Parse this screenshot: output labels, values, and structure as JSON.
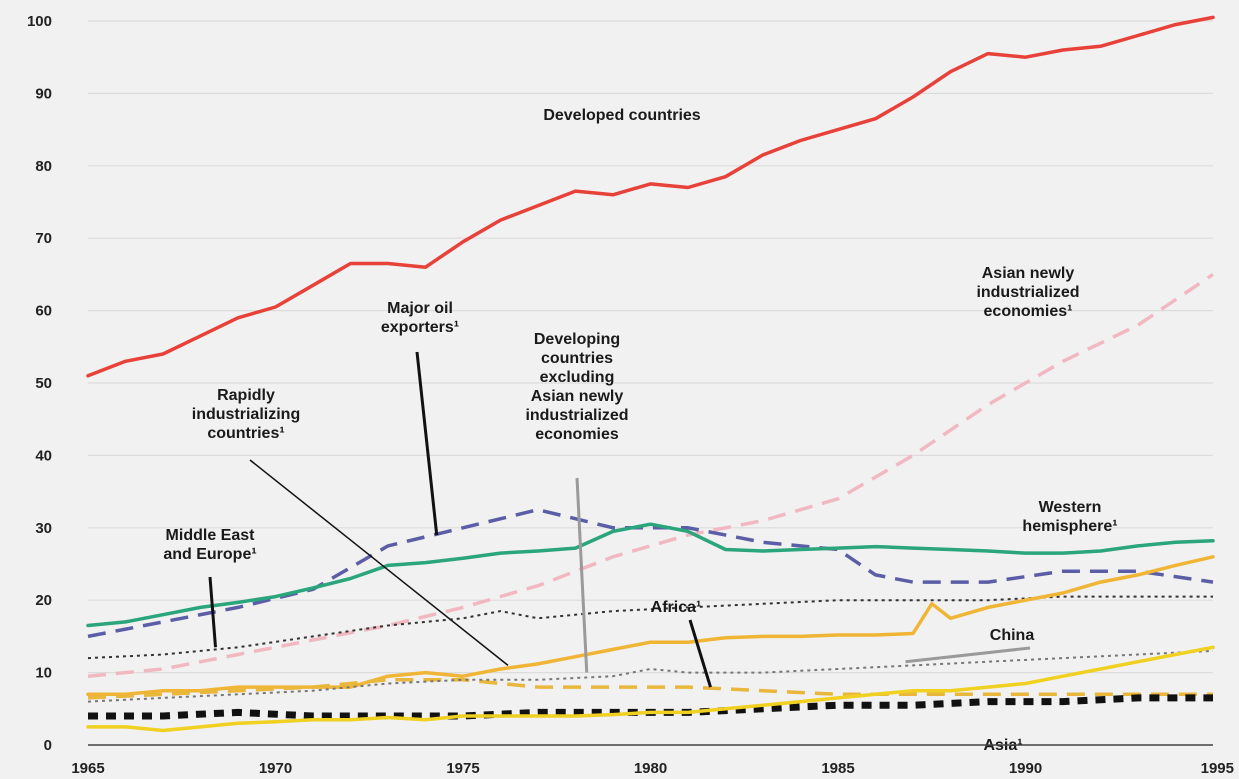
{
  "chart_data": {
    "type": "line",
    "title": "",
    "xlabel": "",
    "ylabel": "",
    "xlim": [
      1965,
      1995
    ],
    "ylim": [
      0,
      100
    ],
    "grid": true,
    "x_ticks": [
      "1965",
      "1970",
      "1975",
      "1980",
      "1985",
      "1990",
      "1995"
    ],
    "y_ticks": [
      "0",
      "10",
      "20",
      "30",
      "40",
      "50",
      "60",
      "70",
      "80",
      "90",
      "100"
    ],
    "series": [
      {
        "name": "Developed countries",
        "color": "#e8413a",
        "style": "solid",
        "x": [
          1965,
          1966,
          1967,
          1968,
          1969,
          1970,
          1971,
          1972,
          1973,
          1974,
          1975,
          1976,
          1977,
          1978,
          1979,
          1980,
          1981,
          1982,
          1983,
          1984,
          1985,
          1986,
          1987,
          1988,
          1989,
          1990,
          1991,
          1992,
          1993,
          1994,
          1995
        ],
        "values": [
          51,
          53,
          54,
          56.5,
          59,
          60.5,
          63.5,
          66.5,
          66.5,
          66,
          69.5,
          72.5,
          74.5,
          76.5,
          76,
          77.5,
          77,
          78.5,
          81.5,
          83.5,
          85,
          86.5,
          89.5,
          93,
          95.5,
          95,
          96,
          96.5,
          98,
          99.5,
          100.5
        ]
      },
      {
        "name": "Asian newly industrialized economies",
        "color": "#f2b8c2",
        "style": "dashed",
        "x": [
          1965,
          1967,
          1969,
          1971,
          1973,
          1975,
          1977,
          1979,
          1981,
          1983,
          1985,
          1987,
          1989,
          1991,
          1993,
          1995
        ],
        "values": [
          9.5,
          10.5,
          12.5,
          14.5,
          16.5,
          19,
          22,
          26,
          29,
          31,
          34,
          40,
          47,
          53,
          58,
          65
        ]
      },
      {
        "name": "Major oil exporters",
        "color": "#5b5ea6",
        "style": "dashed",
        "x": [
          1965,
          1967,
          1969,
          1971,
          1973,
          1975,
          1977,
          1979,
          1981,
          1983,
          1985,
          1986,
          1987,
          1989,
          1991,
          1993,
          1995
        ],
        "values": [
          15,
          17,
          19,
          21.5,
          27.5,
          30,
          32.5,
          30,
          30,
          28,
          27,
          23.5,
          22.5,
          22.5,
          24,
          24,
          22.5
        ]
      },
      {
        "name": "Western hemisphere",
        "color": "#2aa57c",
        "style": "solid",
        "x": [
          1965,
          1966,
          1967,
          1968,
          1969,
          1970,
          1971,
          1972,
          1973,
          1974,
          1975,
          1976,
          1977,
          1978,
          1979,
          1980,
          1981,
          1982,
          1983,
          1984,
          1985,
          1986,
          1987,
          1988,
          1989,
          1990,
          1991,
          1992,
          1993,
          1994,
          1995
        ],
        "values": [
          16.5,
          17,
          18,
          19,
          19.7,
          20.5,
          21.7,
          23,
          24.8,
          25.2,
          25.8,
          26.5,
          26.8,
          27.2,
          29.5,
          30.5,
          29.5,
          27,
          26.8,
          27,
          27.2,
          27.4,
          27.2,
          27,
          26.8,
          26.5,
          26.5,
          26.8,
          27.5,
          28,
          28.2
        ]
      },
      {
        "name": "Middle East and Europe",
        "color": "#333333",
        "style": "dotted",
        "x": [
          1965,
          1967,
          1969,
          1971,
          1973,
          1975,
          1976,
          1977,
          1979,
          1981,
          1983,
          1985,
          1987,
          1989,
          1991,
          1993,
          1995
        ],
        "values": [
          12,
          12.5,
          13.5,
          15,
          16.5,
          17.5,
          18.5,
          17.5,
          18.5,
          19,
          19.5,
          20,
          20,
          20,
          20.5,
          20.5,
          20.5
        ]
      },
      {
        "name": "Africa",
        "color": "#f0b535",
        "style": "solid",
        "x": [
          1965,
          1966,
          1967,
          1968,
          1969,
          1970,
          1971,
          1972,
          1973,
          1974,
          1975,
          1976,
          1977,
          1978,
          1979,
          1980,
          1981,
          1982,
          1983,
          1984,
          1985,
          1986,
          1987,
          1987.5,
          1988,
          1989,
          1990,
          1991,
          1992,
          1993,
          1994,
          1995
        ],
        "values": [
          7,
          7,
          7.5,
          7.5,
          8,
          8,
          8,
          8,
          9.5,
          10,
          9.5,
          10.5,
          11.2,
          12.2,
          13.2,
          14.2,
          14.2,
          14.8,
          15,
          15,
          15.2,
          15.2,
          15.4,
          19.5,
          17.5,
          19,
          20,
          21,
          22.5,
          23.5,
          24.8,
          26
        ]
      },
      {
        "name": "Rapidly industrializing countries",
        "color": "#e8b73c",
        "style": "dashed",
        "x": [
          1965,
          1967,
          1969,
          1971,
          1973,
          1975,
          1977,
          1979,
          1981,
          1983,
          1985,
          1987,
          1989,
          1991,
          1993,
          1995
        ],
        "values": [
          6.5,
          7,
          7.5,
          8,
          9,
          9,
          8,
          8,
          8,
          7.5,
          7,
          7,
          7,
          7,
          7,
          7
        ]
      },
      {
        "name": "Developing countries excluding Asian newly industrialized economies",
        "color": "#777777",
        "style": "dotted",
        "x": [
          1965,
          1967,
          1969,
          1971,
          1973,
          1975,
          1977,
          1979,
          1980,
          1981,
          1983,
          1985,
          1987,
          1989,
          1991,
          1993,
          1995
        ],
        "values": [
          6,
          6.5,
          7,
          7.5,
          8.5,
          9,
          9,
          9.5,
          10.5,
          10,
          10,
          10.5,
          11,
          11.5,
          12,
          12.5,
          13
        ]
      },
      {
        "name": "Asia",
        "color": "#111111",
        "style": "heavy-dashed",
        "x": [
          1965,
          1967,
          1969,
          1971,
          1973,
          1975,
          1977,
          1979,
          1981,
          1983,
          1985,
          1987,
          1989,
          1991,
          1993,
          1995
        ],
        "values": [
          4,
          4,
          4.5,
          4,
          4,
          4,
          4.5,
          4.5,
          4.5,
          5,
          5.5,
          5.5,
          6,
          6,
          6.5,
          6.5
        ]
      },
      {
        "name": "China",
        "color": "#f0d020",
        "style": "solid",
        "x": [
          1965,
          1966,
          1967,
          1968,
          1969,
          1970,
          1971,
          1972,
          1973,
          1974,
          1975,
          1976,
          1977,
          1978,
          1979,
          1980,
          1981,
          1982,
          1983,
          1984,
          1985,
          1986,
          1987,
          1988,
          1989,
          1990,
          1991,
          1992,
          1993,
          1994,
          1995
        ],
        "values": [
          2.5,
          2.5,
          2,
          2.5,
          3,
          3.2,
          3.5,
          3.5,
          3.8,
          3.5,
          4,
          4,
          4,
          4,
          4.2,
          4.5,
          4.5,
          5,
          5.5,
          6,
          6.5,
          7,
          7.5,
          7.5,
          8,
          8.5,
          9.5,
          10.5,
          11.5,
          12.5,
          13.5
        ]
      }
    ],
    "annotations": [
      {
        "lines": [
          "Developed countries"
        ],
        "arrow": null
      },
      {
        "lines": [
          "Asian newly",
          "industrialized",
          "economies¹"
        ],
        "arrow": null
      },
      {
        "lines": [
          "Major oil",
          "exporters¹"
        ],
        "arrow": [
          1974.3,
          29
        ]
      },
      {
        "lines": [
          "Developing",
          "countries",
          "excluding",
          "Asian newly",
          "industrialized",
          "economies"
        ],
        "arrow": [
          1978.3,
          10
        ]
      },
      {
        "lines": [
          "Rapidly",
          "industrializing",
          "countries¹"
        ],
        "arrow": [
          1976.2,
          11
        ]
      },
      {
        "lines": [
          "Middle East",
          "and Europe¹"
        ],
        "arrow": [
          1968.4,
          13.5
        ]
      },
      {
        "lines": [
          "Western",
          "hemisphere¹"
        ],
        "arrow": null
      },
      {
        "lines": [
          "Africa¹"
        ],
        "arrow": [
          1981.6,
          8
        ]
      },
      {
        "lines": [
          "China"
        ],
        "arrow": [
          1986.8,
          11.5
        ]
      },
      {
        "lines": [
          "Asia¹"
        ],
        "arrow": null
      }
    ]
  }
}
